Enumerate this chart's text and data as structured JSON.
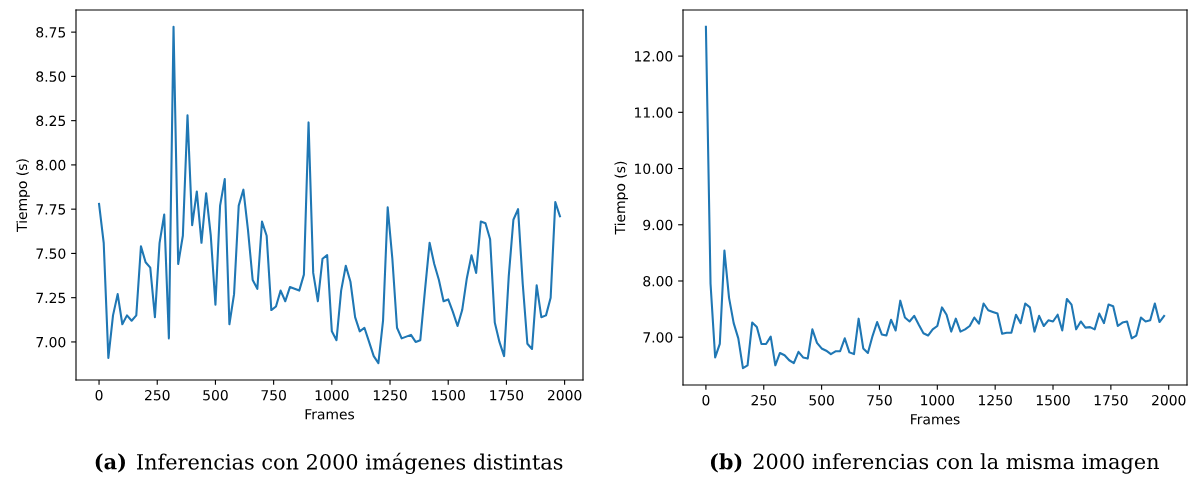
{
  "chart_data": [
    {
      "type": "line",
      "xlabel": "Frames",
      "ylabel": "Tiempo (s)",
      "color": "#1f77b4",
      "grid": false,
      "annotations": [
        "(a) Inferencias con 2000 imágenes distintas"
      ],
      "x": [
        0,
        20,
        40,
        60,
        80,
        100,
        120,
        140,
        160,
        180,
        200,
        220,
        240,
        260,
        280,
        300,
        320,
        340,
        360,
        380,
        400,
        420,
        440,
        460,
        480,
        500,
        520,
        540,
        560,
        580,
        600,
        620,
        640,
        660,
        680,
        700,
        720,
        740,
        760,
        780,
        800,
        820,
        840,
        860,
        880,
        900,
        920,
        940,
        960,
        980,
        1000,
        1020,
        1040,
        1060,
        1080,
        1100,
        1120,
        1140,
        1160,
        1180,
        1200,
        1220,
        1240,
        1260,
        1280,
        1300,
        1320,
        1340,
        1360,
        1380,
        1400,
        1420,
        1440,
        1460,
        1480,
        1500,
        1520,
        1540,
        1560,
        1580,
        1600,
        1620,
        1640,
        1660,
        1680,
        1700,
        1720,
        1740,
        1760,
        1780,
        1800,
        1820,
        1840,
        1860,
        1880,
        1900,
        1920,
        1940,
        1960,
        1980
      ],
      "xlim": [
        -99,
        2079
      ],
      "xticks": [
        0,
        250,
        500,
        750,
        1000,
        1250,
        1500,
        1750,
        2000
      ],
      "ylim": [
        6.785,
        8.875
      ],
      "yticks": [
        {
          "value": 7,
          "label": "7.00"
        },
        {
          "value": 7.25,
          "label": "7.25"
        },
        {
          "value": 7.5,
          "label": "7.50"
        },
        {
          "value": 7.75,
          "label": "7.75"
        },
        {
          "value": 8,
          "label": "8.00"
        },
        {
          "value": 8.25,
          "label": "8.25"
        },
        {
          "value": 8.5,
          "label": "8.50"
        },
        {
          "value": 8.75,
          "label": "8.75"
        }
      ],
      "values": [
        7.78,
        7.56,
        6.91,
        7.15,
        7.27,
        7.1,
        7.15,
        7.12,
        7.15,
        7.54,
        7.45,
        7.42,
        7.14,
        7.56,
        7.72,
        7.02,
        8.78,
        7.44,
        7.6,
        8.28,
        7.66,
        7.85,
        7.56,
        7.84,
        7.6,
        7.21,
        7.77,
        7.92,
        7.1,
        7.27,
        7.77,
        7.86,
        7.63,
        7.35,
        7.3,
        7.68,
        7.6,
        7.18,
        7.2,
        7.29,
        7.23,
        7.31,
        7.3,
        7.29,
        7.38,
        8.24,
        7.39,
        7.23,
        7.47,
        7.49,
        7.06,
        7.01,
        7.29,
        7.43,
        7.34,
        7.14,
        7.06,
        7.08,
        7.0,
        6.92,
        6.88,
        7.12,
        7.76,
        7.47,
        7.08,
        7.02,
        7.03,
        7.04,
        7.0,
        7.01,
        7.29,
        7.56,
        7.44,
        7.35,
        7.23,
        7.24,
        7.17,
        7.09,
        7.18,
        7.36,
        7.49,
        7.39,
        7.68,
        7.67,
        7.58,
        7.11,
        7.0,
        6.92,
        7.37,
        7.69,
        7.75,
        7.33,
        6.99,
        6.96,
        7.32,
        7.14,
        7.15,
        7.25,
        7.79,
        7.71
      ]
    },
    {
      "type": "line",
      "xlabel": "Frames",
      "ylabel": "Tiempo (s)",
      "color": "#1f77b4",
      "grid": false,
      "annotations": [
        "(b) 2000 inferencias con la misma imagen"
      ],
      "x": [
        0,
        20,
        40,
        60,
        80,
        100,
        120,
        140,
        160,
        180,
        200,
        220,
        240,
        260,
        280,
        300,
        320,
        340,
        360,
        380,
        400,
        420,
        440,
        460,
        480,
        500,
        520,
        540,
        560,
        580,
        600,
        620,
        640,
        660,
        680,
        700,
        720,
        740,
        760,
        780,
        800,
        820,
        840,
        860,
        880,
        900,
        920,
        940,
        960,
        980,
        1000,
        1020,
        1040,
        1060,
        1080,
        1100,
        1120,
        1140,
        1160,
        1180,
        1200,
        1220,
        1240,
        1260,
        1280,
        1300,
        1320,
        1340,
        1360,
        1380,
        1400,
        1420,
        1440,
        1460,
        1480,
        1500,
        1520,
        1540,
        1560,
        1580,
        1600,
        1620,
        1640,
        1660,
        1680,
        1700,
        1720,
        1740,
        1760,
        1780,
        1800,
        1820,
        1840,
        1860,
        1880,
        1900,
        1920,
        1940,
        1960,
        1980
      ],
      "xlim": [
        -99,
        2079
      ],
      "xticks": [
        0,
        250,
        500,
        750,
        1000,
        1250,
        1500,
        1750,
        2000
      ],
      "ylim": [
        6.15,
        12.82
      ],
      "yticks": [
        {
          "value": 7,
          "label": "7.00"
        },
        {
          "value": 8,
          "label": "8.00"
        },
        {
          "value": 9,
          "label": "9.00"
        },
        {
          "value": 10,
          "label": "10.00"
        },
        {
          "value": 11,
          "label": "11.00"
        },
        {
          "value": 12,
          "label": "12.00"
        }
      ],
      "values": [
        12.52,
        7.95,
        6.64,
        6.88,
        8.54,
        7.7,
        7.25,
        6.98,
        6.45,
        6.5,
        7.26,
        7.18,
        6.88,
        6.88,
        7.01,
        6.5,
        6.72,
        6.68,
        6.59,
        6.54,
        6.74,
        6.64,
        6.62,
        7.14,
        6.9,
        6.8,
        6.76,
        6.7,
        6.75,
        6.75,
        6.98,
        6.73,
        6.7,
        7.33,
        6.8,
        6.72,
        7.02,
        7.27,
        7.05,
        7.03,
        7.31,
        7.12,
        7.65,
        7.35,
        7.28,
        7.38,
        7.22,
        7.07,
        7.03,
        7.14,
        7.2,
        7.53,
        7.4,
        7.1,
        7.33,
        7.1,
        7.14,
        7.2,
        7.35,
        7.24,
        7.6,
        7.48,
        7.45,
        7.42,
        7.06,
        7.08,
        7.08,
        7.4,
        7.25,
        7.6,
        7.53,
        7.1,
        7.38,
        7.2,
        7.3,
        7.28,
        7.4,
        7.12,
        7.68,
        7.58,
        7.14,
        7.28,
        7.17,
        7.18,
        7.14,
        7.42,
        7.25,
        7.58,
        7.55,
        7.2,
        7.26,
        7.28,
        6.98,
        7.03,
        7.35,
        7.28,
        7.3,
        7.6,
        7.27,
        7.38
      ]
    }
  ]
}
